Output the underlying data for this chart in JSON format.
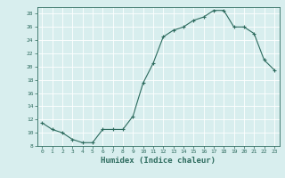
{
  "x": [
    0,
    1,
    2,
    3,
    4,
    5,
    6,
    7,
    8,
    9,
    10,
    11,
    12,
    13,
    14,
    15,
    16,
    17,
    18,
    19,
    20,
    21,
    22,
    23
  ],
  "y": [
    11.5,
    10.5,
    10.0,
    9.0,
    8.5,
    8.5,
    10.5,
    10.5,
    10.5,
    12.5,
    17.5,
    20.5,
    24.5,
    25.5,
    26.0,
    27.0,
    27.5,
    28.5,
    28.5,
    26.0,
    26.0,
    25.0,
    21.0,
    19.5
  ],
  "xlabel": "Humidex (Indice chaleur)",
  "ylim": [
    8,
    29
  ],
  "xlim": [
    -0.5,
    23.5
  ],
  "yticks": [
    8,
    10,
    12,
    14,
    16,
    18,
    20,
    22,
    24,
    26,
    28
  ],
  "xticks": [
    0,
    1,
    2,
    3,
    4,
    5,
    6,
    7,
    8,
    9,
    10,
    11,
    12,
    13,
    14,
    15,
    16,
    17,
    18,
    19,
    20,
    21,
    22,
    23
  ],
  "line_color": "#2d6b5e",
  "marker_color": "#2d6b5e",
  "bg_color": "#d8eeee",
  "grid_color": "#ffffff",
  "xlabel_color": "#2d6b5e",
  "tick_color": "#2d6b5e",
  "spine_color": "#2d6b5e"
}
